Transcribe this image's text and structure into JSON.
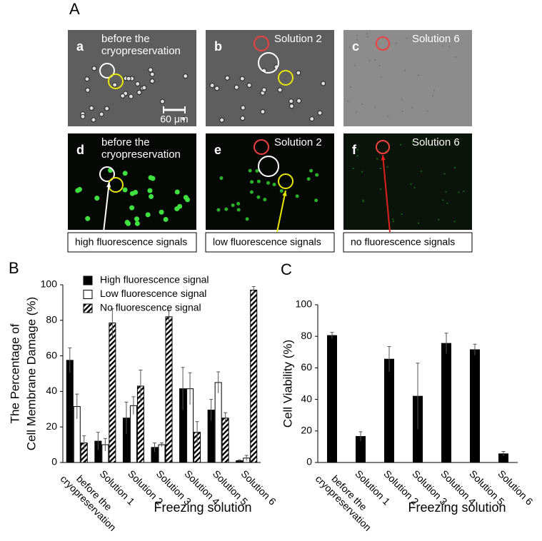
{
  "figure_a": {
    "panel_label": "A",
    "images": [
      {
        "letter": "a",
        "label": [
          "before the",
          "cryopreservation"
        ]
      },
      {
        "letter": "b",
        "label": [
          "Solution 2"
        ]
      },
      {
        "letter": "c",
        "label": [
          "Solution 6"
        ]
      },
      {
        "letter": "d",
        "label": [
          "before the",
          "cryopreservation"
        ]
      },
      {
        "letter": "e",
        "label": [
          "Solution 2"
        ]
      },
      {
        "letter": "f",
        "label": [
          "Solution 6"
        ]
      }
    ],
    "scale_bar": "60 μm",
    "captions": [
      "high fluorescence signals",
      "low fluorescence signals",
      "no fluorescence signals"
    ]
  },
  "chart_data": [
    {
      "type": "bar",
      "panel_label": "B",
      "ylabel": [
        "The Percentage of",
        "Cell Membrane Damage (%)"
      ],
      "xlabel": "Freezing solution",
      "categories": [
        [
          "before the",
          "cryopreservation"
        ],
        [
          "Solution 1"
        ],
        [
          "Solution 2"
        ],
        [
          "Solution 3"
        ],
        [
          "Solution 4"
        ],
        [
          "Solution 5"
        ],
        [
          "Solution 6"
        ]
      ],
      "series": [
        {
          "name": "High fluorescence signal",
          "color": "#000000",
          "values": [
            57.5,
            12,
            25,
            8.5,
            41.5,
            29.5,
            1
          ],
          "errors": [
            7,
            5,
            9,
            2.5,
            12,
            6,
            0.5
          ]
        },
        {
          "name": "Low fluorescence signal",
          "color": "#ffffff",
          "values": [
            31.5,
            10,
            32,
            10,
            41.5,
            45,
            2.5
          ],
          "errors": [
            7,
            3.5,
            5,
            1,
            9,
            6,
            1.5
          ]
        },
        {
          "name": "No fluorescence signal",
          "color": "#000000",
          "hatch": true,
          "values": [
            11,
            78.5,
            43,
            82,
            17,
            25,
            97
          ],
          "errors": [
            4,
            8,
            9,
            3.5,
            6,
            3,
            2
          ]
        }
      ],
      "ylim": [
        0,
        100
      ],
      "yticks": [
        0,
        20,
        40,
        60,
        80,
        100
      ],
      "legend": "top-left"
    },
    {
      "type": "bar",
      "panel_label": "C",
      "ylabel": [
        "Cell Viability (%)"
      ],
      "xlabel": "Freezing solution",
      "categories": [
        [
          "before the",
          "cryopreservation"
        ],
        [
          "Solution 1"
        ],
        [
          "Solution 2"
        ],
        [
          "Solution 3"
        ],
        [
          "Solution 4"
        ],
        [
          "Solution 5"
        ],
        [
          "Solution 6"
        ]
      ],
      "series": [
        {
          "color": "#000000",
          "values": [
            80.5,
            16.5,
            65.5,
            42,
            75.5,
            71.5,
            5.5
          ],
          "errors": [
            2,
            3,
            8,
            21,
            6.5,
            3.5,
            1.5
          ]
        }
      ],
      "ylim": [
        0,
        100
      ],
      "yticks": [
        0,
        20,
        40,
        60,
        80,
        100
      ]
    }
  ]
}
